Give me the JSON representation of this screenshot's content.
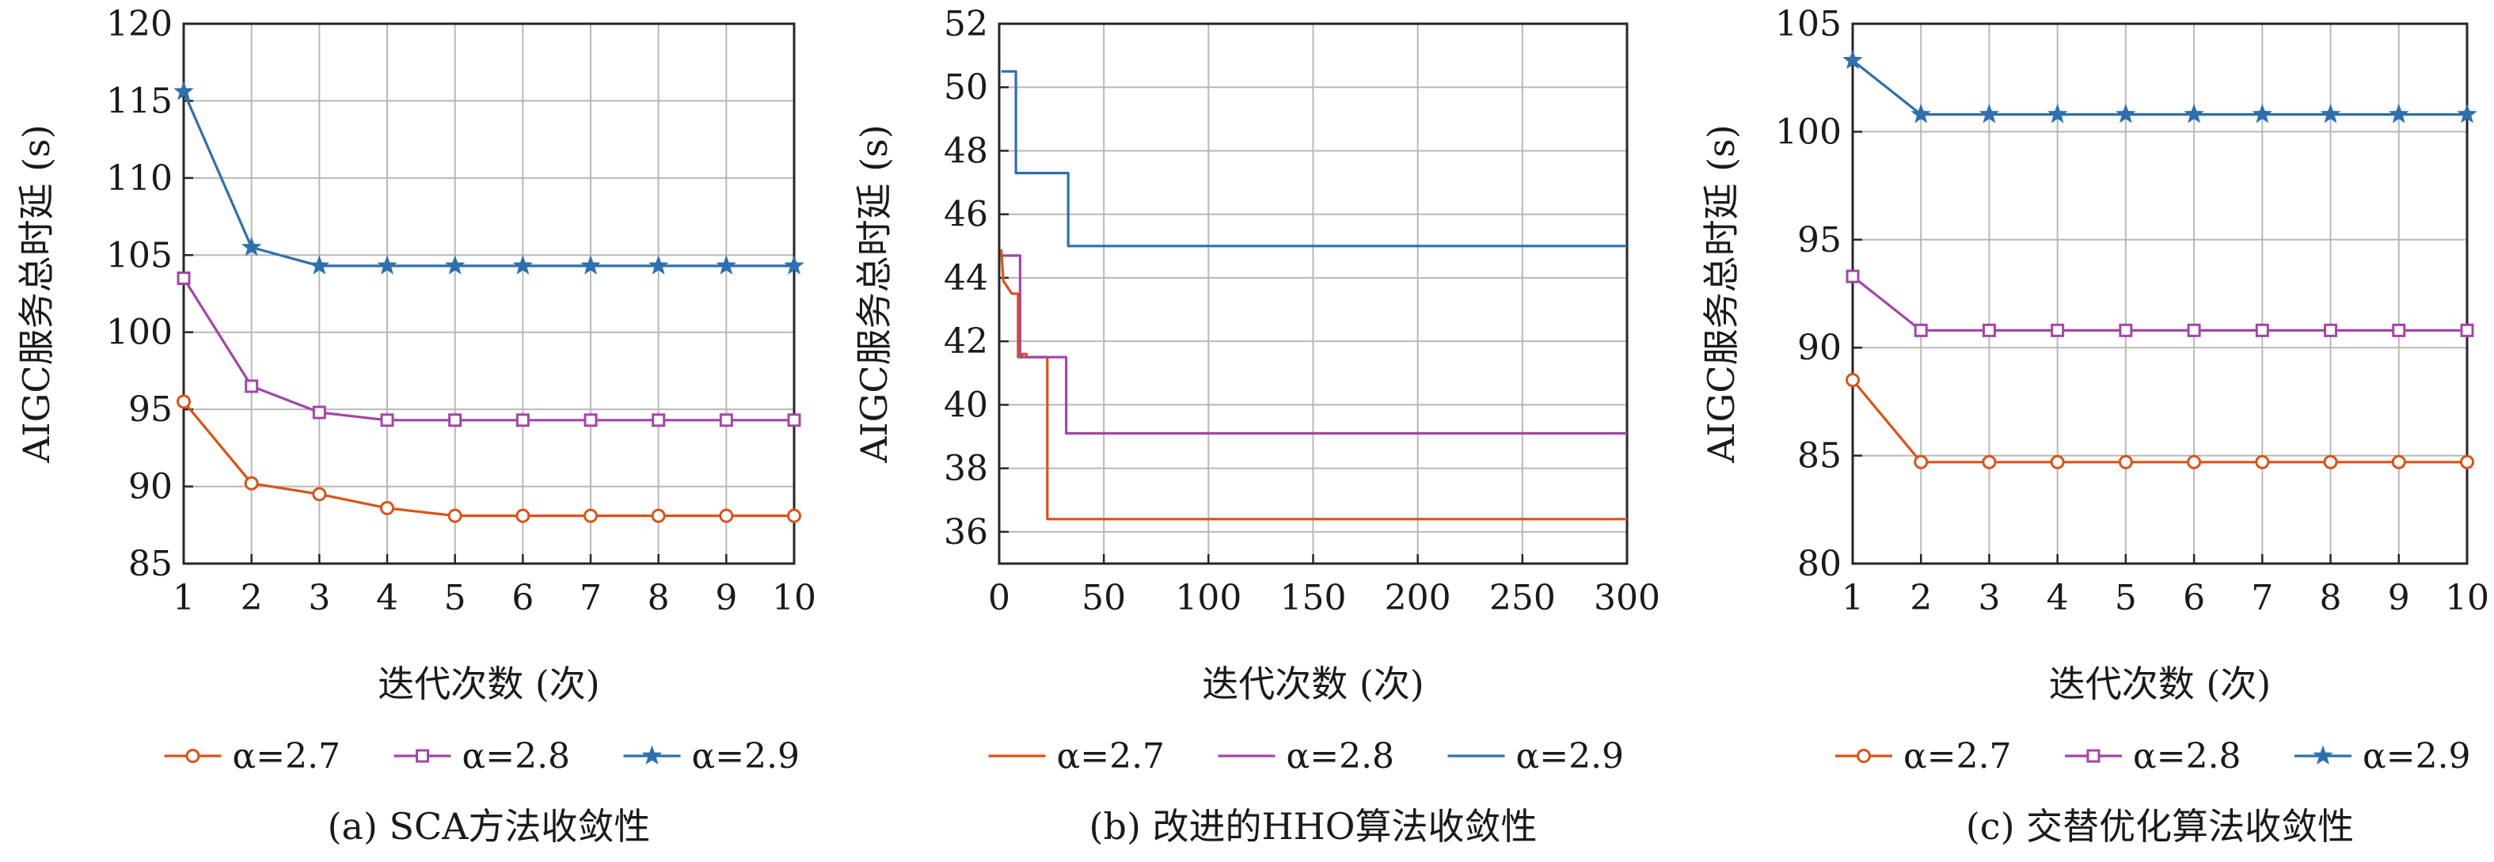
{
  "colors": {
    "s27": "#d95319",
    "s28": "#a346a8",
    "s29": "#2f6fad"
  },
  "chart_data": [
    {
      "type": "line",
      "caption": "(a) SCA方法收敛性",
      "xlabel": "迭代次数 (次)",
      "ylabel": "AIGC服务总时延 (s)",
      "xlim": [
        1,
        10
      ],
      "ylim": [
        85,
        120
      ],
      "xticks": [
        1,
        2,
        3,
        4,
        5,
        6,
        7,
        8,
        9,
        10
      ],
      "yticks": [
        85,
        90,
        95,
        100,
        105,
        110,
        115,
        120
      ],
      "grid": true,
      "legend_position": "bottom",
      "x": [
        1,
        2,
        3,
        4,
        5,
        6,
        7,
        8,
        9,
        10
      ],
      "series": [
        {
          "name": "α=2.7",
          "marker": "circle",
          "values": [
            95.5,
            90.2,
            89.5,
            88.6,
            88.1,
            88.1,
            88.1,
            88.1,
            88.1,
            88.1
          ]
        },
        {
          "name": "α=2.8",
          "marker": "square",
          "values": [
            103.5,
            96.5,
            94.8,
            94.3,
            94.3,
            94.3,
            94.3,
            94.3,
            94.3,
            94.3
          ]
        },
        {
          "name": "α=2.9",
          "marker": "star",
          "values": [
            115.6,
            105.5,
            104.3,
            104.3,
            104.3,
            104.3,
            104.3,
            104.3,
            104.3,
            104.3
          ]
        }
      ]
    },
    {
      "type": "line",
      "caption": "(b) 改进的HHO算法收敛性",
      "xlabel": "迭代次数 (次)",
      "ylabel": "AIGC服务总时延 (s)",
      "xlim": [
        0,
        300
      ],
      "ylim": [
        35,
        52
      ],
      "xticks": [
        0,
        50,
        100,
        150,
        200,
        250,
        300
      ],
      "yticks": [
        36,
        38,
        40,
        42,
        44,
        46,
        48,
        50,
        52
      ],
      "grid": true,
      "legend_position": "bottom",
      "step": true,
      "series": [
        {
          "name": "α=2.7",
          "marker": "none",
          "points": [
            [
              1,
              44.9
            ],
            [
              2,
              43.9
            ],
            [
              4,
              43.7
            ],
            [
              6,
              43.5
            ],
            [
              9,
              43.5
            ],
            [
              9,
              41.5
            ],
            [
              11,
              41.5
            ],
            [
              11,
              41.6
            ],
            [
              13,
              41.6
            ],
            [
              13,
              41.5
            ],
            [
              23,
              41.5
            ],
            [
              23,
              36.4
            ],
            [
              300,
              36.4
            ]
          ]
        },
        {
          "name": "α=2.8",
          "marker": "none",
          "points": [
            [
              1,
              44.7
            ],
            [
              10,
              44.7
            ],
            [
              10,
              41.5
            ],
            [
              32,
              41.5
            ],
            [
              32,
              39.1
            ],
            [
              300,
              39.1
            ]
          ]
        },
        {
          "name": "α=2.9",
          "marker": "none",
          "points": [
            [
              1,
              50.5
            ],
            [
              8,
              50.5
            ],
            [
              8,
              47.3
            ],
            [
              33,
              47.3
            ],
            [
              33,
              45.0
            ],
            [
              300,
              45.0
            ]
          ]
        }
      ]
    },
    {
      "type": "line",
      "caption": "(c) 交替优化算法收敛性",
      "xlabel": "迭代次数 (次)",
      "ylabel": "AIGC服务总时延 (s)",
      "xlim": [
        1,
        10
      ],
      "ylim": [
        80,
        105
      ],
      "xticks": [
        1,
        2,
        3,
        4,
        5,
        6,
        7,
        8,
        9,
        10
      ],
      "yticks": [
        80,
        85,
        90,
        95,
        100,
        105
      ],
      "grid": true,
      "legend_position": "bottom",
      "x": [
        1,
        2,
        3,
        4,
        5,
        6,
        7,
        8,
        9,
        10
      ],
      "series": [
        {
          "name": "α=2.7",
          "marker": "circle",
          "values": [
            88.5,
            84.7,
            84.7,
            84.7,
            84.7,
            84.7,
            84.7,
            84.7,
            84.7,
            84.7
          ]
        },
        {
          "name": "α=2.8",
          "marker": "square",
          "values": [
            93.3,
            90.8,
            90.8,
            90.8,
            90.8,
            90.8,
            90.8,
            90.8,
            90.8,
            90.8
          ]
        },
        {
          "name": "α=2.9",
          "marker": "star",
          "values": [
            103.3,
            100.8,
            100.8,
            100.8,
            100.8,
            100.8,
            100.8,
            100.8,
            100.8,
            100.8
          ]
        }
      ]
    }
  ]
}
